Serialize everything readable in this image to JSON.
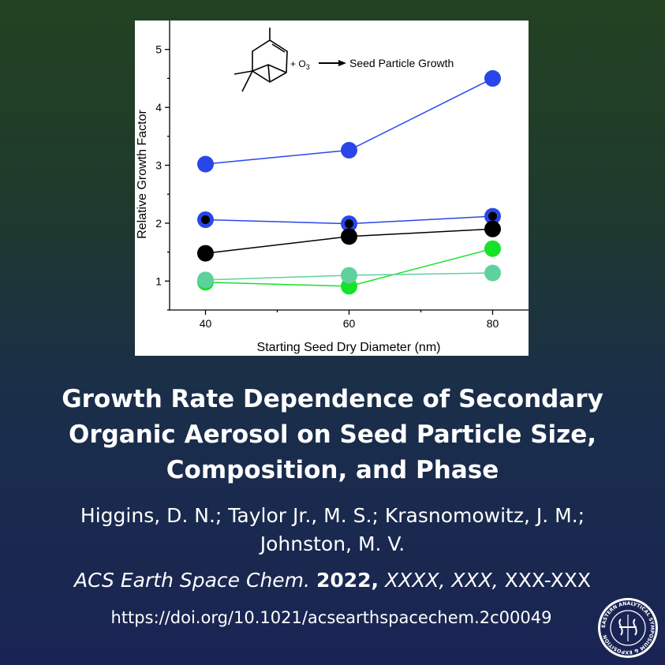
{
  "figure": {
    "reaction_text": "+ O",
    "reaction_subscript": "3",
    "reaction_product": "Seed Particle Growth"
  },
  "chart_data": {
    "type": "scatter",
    "xlabel": "Starting Seed Dry Diameter (nm)",
    "ylabel": "Relative Growth Factor",
    "xlim": [
      35,
      85
    ],
    "ylim": [
      0.5,
      5.5
    ],
    "xticks": [
      40,
      60,
      80
    ],
    "yticks": [
      1,
      2,
      3,
      4,
      5
    ],
    "grid": false,
    "x": [
      40,
      60,
      80
    ],
    "series": [
      {
        "values": [
          3.02,
          3.26,
          4.5
        ],
        "color": "#2947e8",
        "marker": "filled-circle",
        "line": true
      },
      {
        "values": [
          2.06,
          1.99,
          2.12
        ],
        "color": "#2947e8",
        "marker": "ring-black-center",
        "line": true
      },
      {
        "values": [
          1.48,
          1.77,
          1.9
        ],
        "color": "#000000",
        "marker": "filled-circle",
        "line": true
      },
      {
        "values": [
          0.98,
          0.91,
          1.56
        ],
        "color": "#17e22a",
        "marker": "filled-circle",
        "line": true
      },
      {
        "values": [
          1.02,
          1.1,
          1.14
        ],
        "color": "#5fd19d",
        "marker": "filled-circle",
        "line": true
      }
    ]
  },
  "title_lines": [
    "Growth Rate Dependence of Secondary",
    "Organic Aerosol on Seed Particle Size,",
    "Composition, and Phase"
  ],
  "authors_lines": [
    "Higgins, D. N.; Taylor Jr., M. S.; Krasnomowitz, J. M.;",
    "Johnston, M. V."
  ],
  "citation": {
    "journal": "ACS Earth Space Chem.",
    "year": "2022,",
    "volume": "XXXX, XXX,",
    "pages": "XXX-XXX"
  },
  "doi": "https://doi.org/10.1021/acsearthspacechem.2c00049",
  "seal_icon": "eastern-analytical-symposium-seal-icon",
  "seal_text": "EASTERN ANALYTICAL SYMPOSIUM & EXPOSITION",
  "colors": {
    "background_top": "#234222",
    "background_bottom": "#1a2454",
    "text": "#ffffff"
  }
}
